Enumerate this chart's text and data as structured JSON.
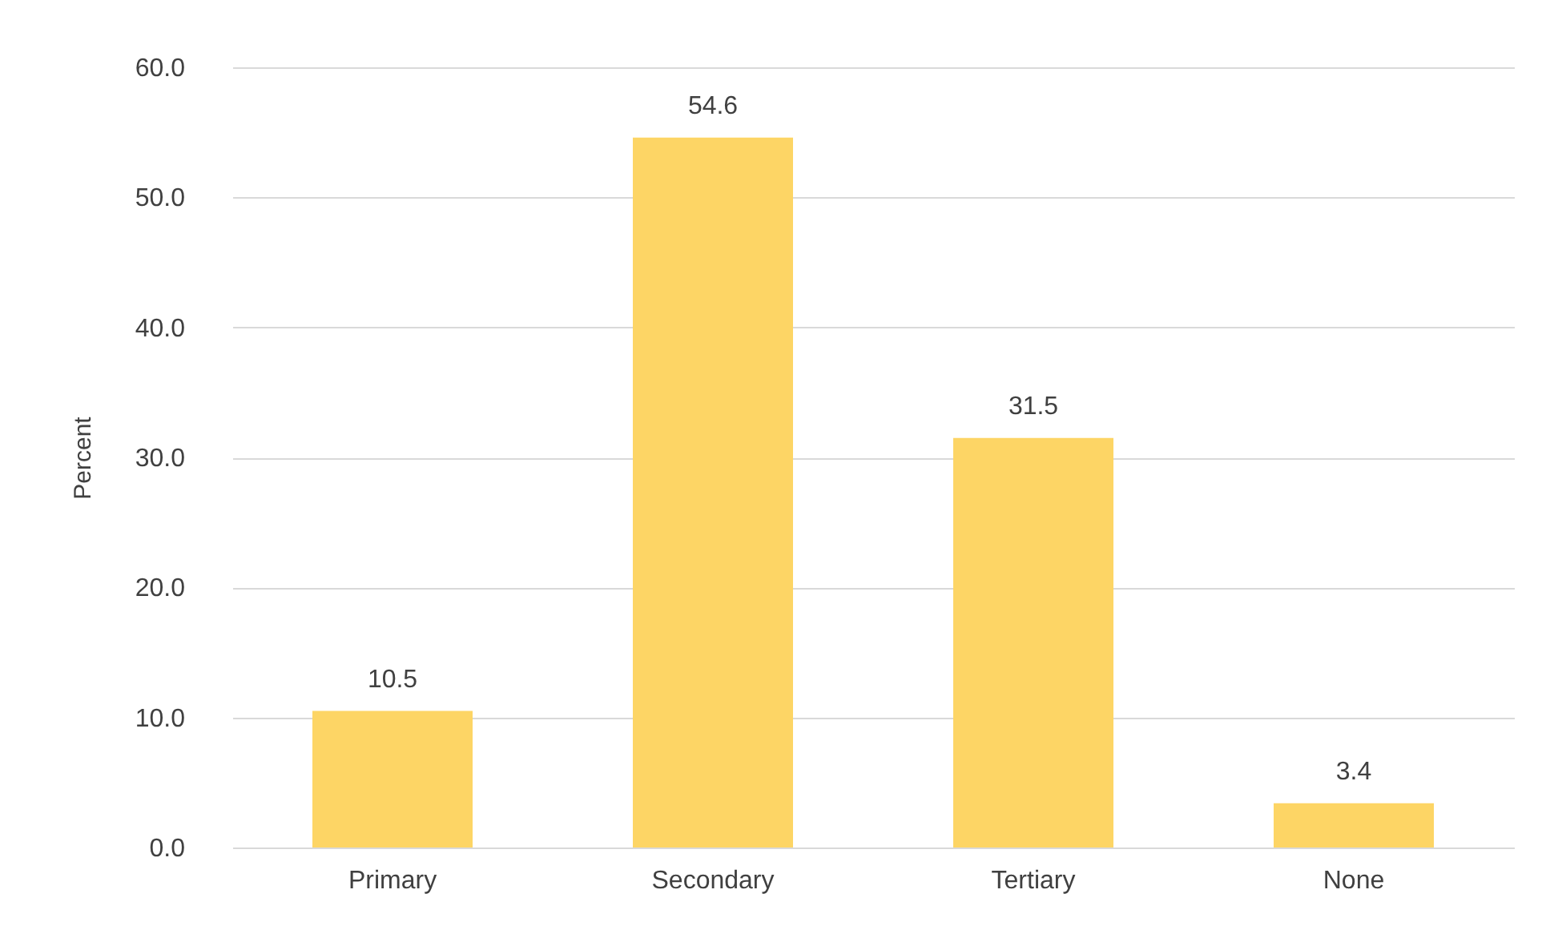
{
  "chart_data": {
    "type": "bar",
    "ylabel": "Percent",
    "categories": [
      "Primary",
      "Secondary",
      "Tertiary",
      "None"
    ],
    "values": [
      10.5,
      54.6,
      31.5,
      3.4
    ],
    "color": "#fdd565",
    "ylim": [
      0,
      60
    ],
    "yticks": [
      {
        "value": 0,
        "label": "0.0"
      },
      {
        "value": 10,
        "label": "10.0"
      },
      {
        "value": 20,
        "label": "20.0"
      },
      {
        "value": 30,
        "label": "30.0"
      },
      {
        "value": 40,
        "label": "40.0"
      },
      {
        "value": 50,
        "label": "50.0"
      },
      {
        "value": 60,
        "label": "60.0"
      }
    ],
    "grid": "y",
    "data_labels": true
  }
}
